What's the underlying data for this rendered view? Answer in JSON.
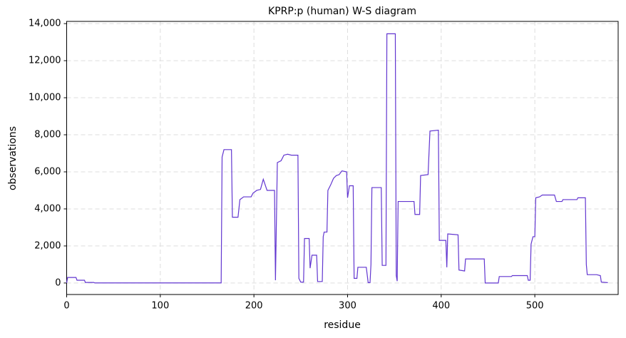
{
  "chart_data": {
    "type": "line",
    "title": "KPRP:p (human) W-S diagram",
    "x_label": "residue",
    "y_label": "observations",
    "xlim": [
      0,
      589
    ],
    "ylim": [
      -620,
      14120
    ],
    "xticks": [
      0,
      100,
      200,
      300,
      400,
      500
    ],
    "yticks": [
      0,
      {
        "value": 2000,
        "label": "2,000"
      },
      {
        "value": 4000,
        "label": "4,000"
      },
      {
        "value": 6000,
        "label": "6,000"
      },
      {
        "value": 8000,
        "label": "8,000"
      },
      {
        "value": 10000,
        "label": "10,000"
      },
      {
        "value": 12000,
        "label": "12,000"
      },
      {
        "value": 14000,
        "label": "14,000"
      }
    ],
    "grid": true,
    "series": [
      {
        "color": "#6236d0",
        "x": [
          0,
          1,
          10,
          11,
          19,
          20,
          29,
          30,
          165,
          166,
          168,
          176,
          177,
          183,
          185,
          189,
          197,
          199,
          203,
          207,
          210,
          212,
          214,
          222,
          223,
          225,
          229,
          232,
          236,
          240,
          247,
          248,
          250,
          253,
          254,
          259,
          260,
          262,
          267,
          268,
          273,
          274,
          275,
          278,
          279,
          282,
          285,
          288,
          291,
          294,
          299,
          300,
          302,
          306,
          307,
          310,
          311,
          320,
          322,
          324,
          325,
          326,
          336,
          337,
          341,
          342,
          351,
          352,
          353,
          354,
          371,
          372,
          377,
          378,
          386,
          388,
          397,
          398,
          405,
          406,
          407,
          418,
          419,
          425,
          426,
          446,
          447,
          461,
          462,
          475,
          476,
          492,
          493,
          495,
          496,
          498,
          500,
          501,
          505,
          508,
          521,
          523,
          529,
          530,
          545,
          546,
          554,
          555,
          556,
          566,
          570,
          571,
          578
        ],
        "values": [
          0,
          300,
          300,
          150,
          150,
          30,
          30,
          5,
          5,
          6800,
          7200,
          7200,
          3550,
          3550,
          4500,
          4650,
          4650,
          4850,
          5000,
          5050,
          5600,
          5300,
          5000,
          5000,
          150,
          6500,
          6600,
          6900,
          6950,
          6900,
          6900,
          250,
          50,
          50,
          2400,
          2400,
          800,
          1500,
          1500,
          80,
          80,
          2500,
          2750,
          2750,
          5000,
          5300,
          5650,
          5800,
          5850,
          6050,
          6000,
          4600,
          5250,
          5250,
          250,
          250,
          850,
          850,
          20,
          20,
          1000,
          5150,
          5150,
          950,
          950,
          13450,
          13450,
          400,
          100,
          4400,
          4400,
          3700,
          3700,
          5800,
          5850,
          8200,
          8250,
          2300,
          2300,
          850,
          2650,
          2600,
          700,
          650,
          1300,
          1300,
          0,
          0,
          350,
          350,
          400,
          400,
          150,
          150,
          2100,
          2500,
          2500,
          4600,
          4650,
          4750,
          4750,
          4400,
          4400,
          4500,
          4500,
          4600,
          4600,
          1000,
          450,
          450,
          400,
          50,
          20
        ]
      }
    ]
  }
}
